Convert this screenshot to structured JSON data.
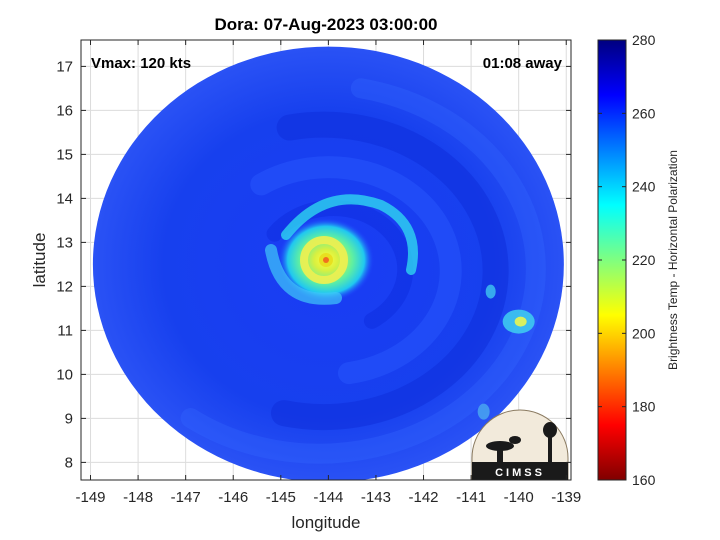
{
  "chart_data": {
    "type": "heatmap",
    "title": "Dora: 07-Aug-2023 03:00:00",
    "xlabel": "longitude",
    "ylabel": "latitude",
    "xlim": [
      -149.2,
      -138.9
    ],
    "ylim": [
      7.6,
      17.6
    ],
    "x_ticks": [
      -149,
      -148,
      -147,
      -146,
      -145,
      -144,
      -143,
      -142,
      -141,
      -140,
      -139
    ],
    "x_tick_labels": [
      "-149",
      "-148",
      "-147",
      "-146",
      "-145",
      "-144",
      "-143",
      "-142",
      "-141",
      "-140",
      "-139"
    ],
    "y_ticks": [
      8,
      9,
      10,
      11,
      12,
      13,
      14,
      15,
      16,
      17
    ],
    "y_tick_labels": [
      "8",
      "9",
      "10",
      "11",
      "12",
      "13",
      "14",
      "15",
      "16",
      "17"
    ],
    "grid": true,
    "colorbar": {
      "label": "Brightness Temp - Horizontal Polarization",
      "range": [
        160,
        280
      ],
      "ticks": [
        160,
        180,
        200,
        220,
        240,
        260,
        280
      ],
      "tick_labels": [
        "160",
        "180",
        "200",
        "220",
        "240",
        "260",
        "280"
      ],
      "colormap": "jet"
    },
    "annotations": {
      "vmax": "Vmax: 120 kts",
      "time_offset": "01:08 away"
    },
    "storm_center": {
      "lon": -144.05,
      "lat": 12.6
    },
    "swath_center": {
      "lon": -144.0,
      "lat": 12.5
    },
    "swath_radius_deg": 4.95,
    "features": [
      {
        "name": "eyewall",
        "lon": -144.1,
        "lat": 12.6,
        "temp": 215
      },
      {
        "name": "outer-band",
        "lon": -143.4,
        "lat": 13.1,
        "temp": 235
      },
      {
        "name": "convection-east",
        "lon": -140.0,
        "lat": 11.2,
        "temp": 230
      }
    ]
  },
  "logo": {
    "text": "CIMSS"
  },
  "colors": {
    "background": "#ffffff",
    "axes_edge": "#262626",
    "grid": "#dcdcdc"
  }
}
